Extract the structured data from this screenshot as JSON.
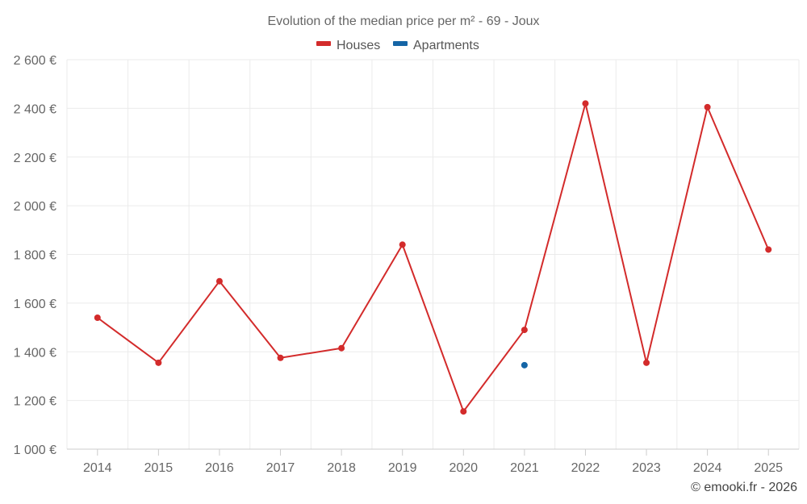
{
  "chart_data": {
    "type": "line",
    "title": "Evolution of the median price per m² - 69 - Joux",
    "categories": [
      "2014",
      "2015",
      "2016",
      "2017",
      "2018",
      "2019",
      "2020",
      "2021",
      "2022",
      "2023",
      "2024",
      "2025"
    ],
    "series": [
      {
        "name": "Houses",
        "color": "#d32b2b",
        "values": [
          1540,
          1355,
          1690,
          1375,
          1415,
          1840,
          1155,
          1490,
          2420,
          1355,
          2405,
          1820
        ]
      },
      {
        "name": "Apartments",
        "color": "#1565a6",
        "values": [
          null,
          null,
          null,
          null,
          null,
          null,
          null,
          1345,
          null,
          null,
          null,
          null
        ]
      }
    ],
    "ylim": [
      1000,
      2600
    ],
    "yticks": [
      1000,
      1200,
      1400,
      1600,
      1800,
      2000,
      2200,
      2400,
      2600
    ],
    "ytick_labels": [
      "1 000 €",
      "1 200 €",
      "1 400 €",
      "1 600 €",
      "1 800 €",
      "2 000 €",
      "2 200 €",
      "2 400 €",
      "2 600 €"
    ],
    "xlabel": "",
    "ylabel": "",
    "grid": true,
    "legend_position": "top-center"
  },
  "credit": "© emooki.fr - 2026"
}
